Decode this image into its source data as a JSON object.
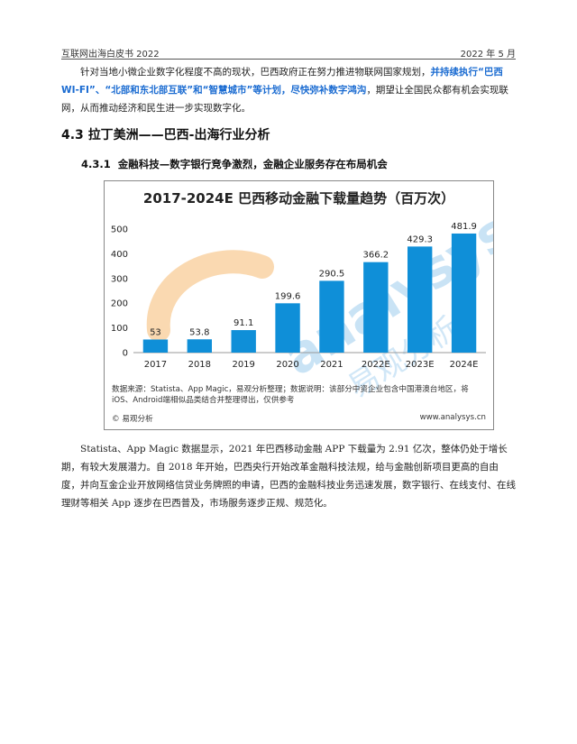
{
  "header": {
    "left": "互联网出海白皮书 2022",
    "right": "2022 年 5 月"
  },
  "intro": {
    "part1": "针对当地小微企业数字化程度不高的现状，巴西政府正在努力推进物联网国家规划，",
    "highlight": "并持续执行“巴西 WI-FI”、“北部和东北部互联”和“智慧城市”等计划，尽快弥补数字鸿沟",
    "part2": "，期望让全国民众都有机会实现联网，从而推动经济和民生进一步实现数字化。"
  },
  "section": {
    "number": "4.3",
    "title": "拉丁美洲——巴西-出海行业分析"
  },
  "subsection": {
    "number": "4.3.1",
    "title": "金融科技—数字银行竞争激烈，金融企业服务存在布局机会"
  },
  "chart_data": {
    "type": "bar",
    "title": "2017-2024E 巴西移动金融下载量趋势（百万次）",
    "categories": [
      "2017",
      "2018",
      "2019",
      "2020",
      "2021",
      "2022E",
      "2023E",
      "2024E"
    ],
    "values": [
      53,
      53.8,
      91.1,
      199.6,
      290.5,
      366.2,
      429.3,
      481.9
    ],
    "value_labels": [
      "53",
      "53.8",
      "91.1",
      "199.6",
      "290.5",
      "366.2",
      "429.3",
      "481.9"
    ],
    "ylim": [
      0,
      500
    ],
    "yticks": [
      "0",
      "100",
      "200",
      "300",
      "400",
      "500"
    ],
    "grid": false,
    "bar_color": "#0f8fd8",
    "source_note": "数据来源：Statista、App Magic，易观分析整理；数据说明：该部分中资企业包含中国港澳台地区，将iOS、Android端相似品类结合并整理得出，仅供参考",
    "copyright": "© 易观分析",
    "site": "www.analysys.cn",
    "watermark": {
      "text": "analysys",
      "text_cn": "易观分析",
      "colors": [
        "#f5b971",
        "#b3d8f2"
      ]
    }
  },
  "body_text": "Statista、App Magic 数据显示，2021 年巴西移动金融 APP 下载量为 2.91 亿次，整体仍处于增长期，有较大发展潜力。自 2018 年开始，巴西央行开始改革金融科技法规，给与金融创新项目更高的自由度，并向互金企业开放网络信贷业务牌照的申请，巴西的金融科技业务迅速发展，数字银行、在线支付、在线理财等相关 App 逐步在巴西普及，市场服务逐步正规、规范化。"
}
